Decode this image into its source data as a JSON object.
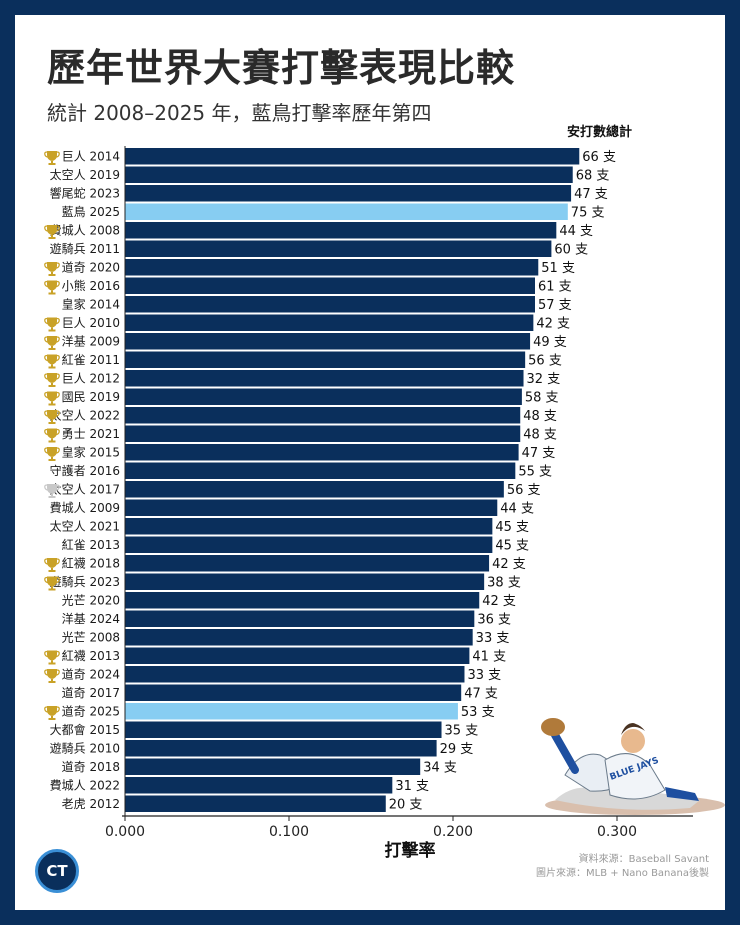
{
  "header": {
    "title": "歷年世界大賽打擊表現比較",
    "subtitle": "統計 2008–2025 年，藍鳥打擊率歷年第四"
  },
  "chart_data": {
    "type": "bar",
    "orientation": "horizontal",
    "xlabel": "打擊率",
    "value_column_label": "安打數總計",
    "xlim": [
      0,
      0.345
    ],
    "xticks": [
      "0.000",
      "0.100",
      "0.200",
      "0.300"
    ],
    "hit_suffix": "支",
    "colors": {
      "default": "#0a2f5c",
      "highlight": "#87cdf2",
      "trophy_gold": "#c9a227",
      "trophy_silver": "#c8c8c8"
    },
    "bars": [
      {
        "label": "巨人 2014",
        "value": 0.277,
        "hits": 66,
        "trophy": "gold",
        "highlight": false
      },
      {
        "label": "太空人 2019",
        "value": 0.273,
        "hits": 68,
        "trophy": "none",
        "highlight": false
      },
      {
        "label": "響尾蛇 2023",
        "value": 0.272,
        "hits": 47,
        "trophy": "none",
        "highlight": false
      },
      {
        "label": "藍鳥 2025",
        "value": 0.27,
        "hits": 75,
        "trophy": "none",
        "highlight": true
      },
      {
        "label": "費城人 2008",
        "value": 0.263,
        "hits": 44,
        "trophy": "gold",
        "highlight": false
      },
      {
        "label": "遊騎兵 2011",
        "value": 0.26,
        "hits": 60,
        "trophy": "none",
        "highlight": false
      },
      {
        "label": "道奇 2020",
        "value": 0.252,
        "hits": 51,
        "trophy": "gold",
        "highlight": false
      },
      {
        "label": "小熊 2016",
        "value": 0.25,
        "hits": 61,
        "trophy": "gold",
        "highlight": false
      },
      {
        "label": "皇家 2014",
        "value": 0.25,
        "hits": 57,
        "trophy": "none",
        "highlight": false
      },
      {
        "label": "巨人 2010",
        "value": 0.249,
        "hits": 42,
        "trophy": "gold",
        "highlight": false
      },
      {
        "label": "洋基 2009",
        "value": 0.247,
        "hits": 49,
        "trophy": "gold",
        "highlight": false
      },
      {
        "label": "紅雀 2011",
        "value": 0.244,
        "hits": 56,
        "trophy": "gold",
        "highlight": false
      },
      {
        "label": "巨人 2012",
        "value": 0.243,
        "hits": 32,
        "trophy": "gold",
        "highlight": false
      },
      {
        "label": "國民 2019",
        "value": 0.242,
        "hits": 58,
        "trophy": "gold",
        "highlight": false
      },
      {
        "label": "太空人 2022",
        "value": 0.241,
        "hits": 48,
        "trophy": "gold",
        "highlight": false
      },
      {
        "label": "勇士 2021",
        "value": 0.241,
        "hits": 48,
        "trophy": "gold",
        "highlight": false
      },
      {
        "label": "皇家 2015",
        "value": 0.24,
        "hits": 47,
        "trophy": "gold",
        "highlight": false
      },
      {
        "label": "守護者 2016",
        "value": 0.238,
        "hits": 55,
        "trophy": "none",
        "highlight": false
      },
      {
        "label": "太空人 2017",
        "value": 0.231,
        "hits": 56,
        "trophy": "silver",
        "highlight": false
      },
      {
        "label": "費城人 2009",
        "value": 0.227,
        "hits": 44,
        "trophy": "none",
        "highlight": false
      },
      {
        "label": "太空人 2021",
        "value": 0.224,
        "hits": 45,
        "trophy": "none",
        "highlight": false
      },
      {
        "label": "紅雀 2013",
        "value": 0.224,
        "hits": 45,
        "trophy": "none",
        "highlight": false
      },
      {
        "label": "紅襪 2018",
        "value": 0.222,
        "hits": 42,
        "trophy": "gold",
        "highlight": false
      },
      {
        "label": "遊騎兵 2023",
        "value": 0.219,
        "hits": 38,
        "trophy": "gold",
        "highlight": false
      },
      {
        "label": "光芒 2020",
        "value": 0.216,
        "hits": 42,
        "trophy": "none",
        "highlight": false
      },
      {
        "label": "洋基 2024",
        "value": 0.213,
        "hits": 36,
        "trophy": "none",
        "highlight": false
      },
      {
        "label": "光芒 2008",
        "value": 0.212,
        "hits": 33,
        "trophy": "none",
        "highlight": false
      },
      {
        "label": "紅襪 2013",
        "value": 0.21,
        "hits": 41,
        "trophy": "gold",
        "highlight": false
      },
      {
        "label": "道奇 2024",
        "value": 0.207,
        "hits": 33,
        "trophy": "gold",
        "highlight": false
      },
      {
        "label": "道奇 2017",
        "value": 0.205,
        "hits": 47,
        "trophy": "none",
        "highlight": false
      },
      {
        "label": "道奇 2025",
        "value": 0.203,
        "hits": 53,
        "trophy": "gold",
        "highlight": true
      },
      {
        "label": "大都會 2015",
        "value": 0.193,
        "hits": 35,
        "trophy": "none",
        "highlight": false
      },
      {
        "label": "遊騎兵 2010",
        "value": 0.19,
        "hits": 29,
        "trophy": "none",
        "highlight": false
      },
      {
        "label": "道奇 2018",
        "value": 0.18,
        "hits": 34,
        "trophy": "none",
        "highlight": false
      },
      {
        "label": "費城人 2022",
        "value": 0.163,
        "hits": 31,
        "trophy": "none",
        "highlight": false
      },
      {
        "label": "老虎 2012",
        "value": 0.159,
        "hits": 20,
        "trophy": "none",
        "highlight": false
      }
    ]
  },
  "credits": {
    "data_source": "資料來源：Baseball Savant",
    "image_source": "圖片來源：MLB + Nano Banana後製"
  },
  "logo": {
    "text": "CT"
  },
  "illustration": {
    "jersey_text": "BLUE JAYS",
    "icon": "sliding-player-illustration"
  }
}
